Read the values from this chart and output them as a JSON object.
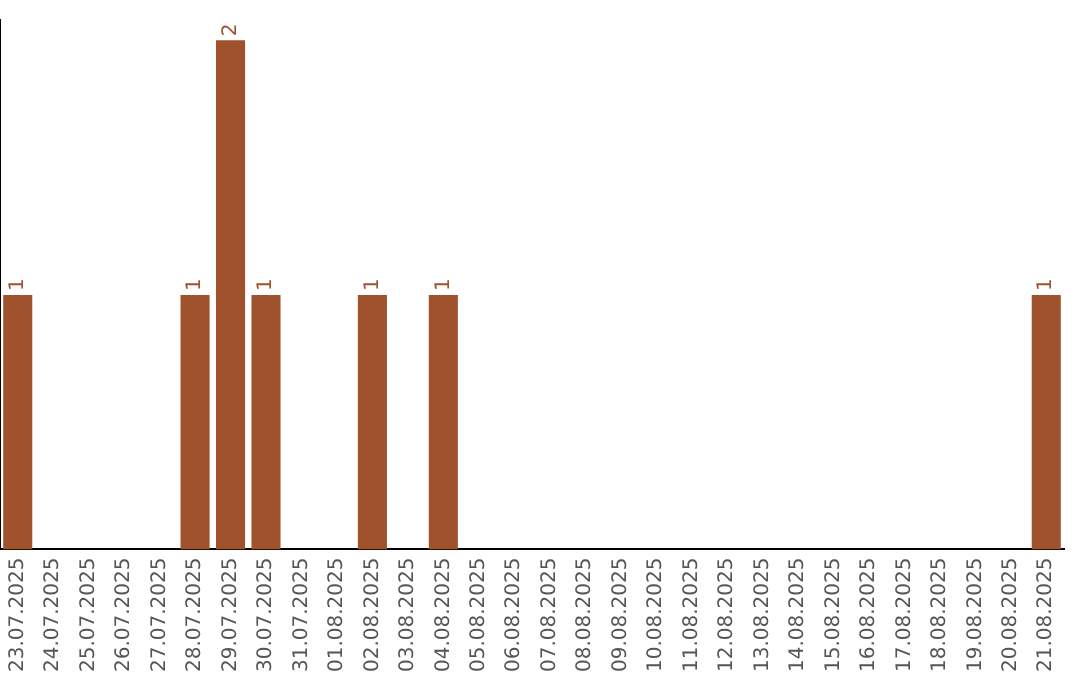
{
  "chart_data": {
    "type": "bar",
    "categories": [
      "23.07.2025",
      "24.07.2025",
      "25.07.2025",
      "26.07.2025",
      "27.07.2025",
      "28.07.2025",
      "29.07.2025",
      "30.07.2025",
      "31.07.2025",
      "01.08.2025",
      "02.08.2025",
      "03.08.2025",
      "04.08.2025",
      "05.08.2025",
      "06.08.2025",
      "07.08.2025",
      "08.08.2025",
      "09.08.2025",
      "10.08.2025",
      "11.08.2025",
      "12.08.2025",
      "13.08.2025",
      "14.08.2025",
      "15.08.2025",
      "16.08.2025",
      "17.08.2025",
      "18.08.2025",
      "19.08.2025",
      "20.08.2025",
      "21.08.2025"
    ],
    "values": [
      1,
      0,
      0,
      0,
      0,
      1,
      2,
      1,
      0,
      0,
      1,
      0,
      1,
      0,
      0,
      0,
      0,
      0,
      0,
      0,
      0,
      0,
      0,
      0,
      0,
      0,
      0,
      0,
      0,
      1
    ],
    "value_labels": [
      "1",
      null,
      null,
      null,
      null,
      "1",
      "2",
      "1",
      null,
      null,
      "1",
      null,
      "1",
      null,
      null,
      null,
      null,
      null,
      null,
      null,
      null,
      null,
      null,
      null,
      null,
      null,
      null,
      null,
      null,
      "1"
    ],
    "color": "#a0522d",
    "ylim": [
      0,
      2.08
    ],
    "grid": false,
    "legend": false,
    "tick_labels": "x"
  }
}
